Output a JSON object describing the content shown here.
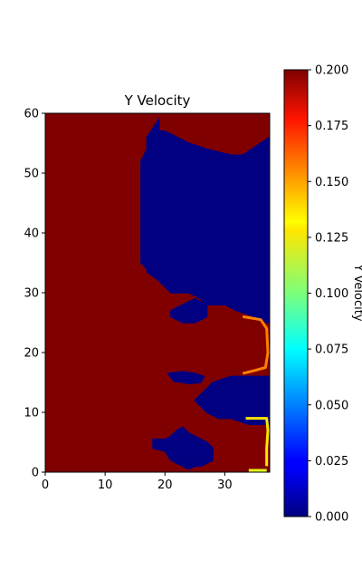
{
  "chart_data": {
    "type": "heatmap",
    "title": "Y Velocity",
    "xlabel": "",
    "ylabel": "",
    "xlim": [
      0,
      37.5
    ],
    "ylim": [
      0,
      60
    ],
    "x_ticks": [
      "0",
      "10",
      "20",
      "30"
    ],
    "y_ticks": [
      "0",
      "10",
      "20",
      "30",
      "40",
      "50",
      "60"
    ],
    "colormap": "jet",
    "colorbar": {
      "label": "Y Velocity",
      "range": [
        0.0,
        0.2
      ],
      "ticks": [
        "0.000",
        "0.025",
        "0.050",
        "0.075",
        "0.100",
        "0.125",
        "0.150",
        "0.175",
        "0.200"
      ]
    },
    "regions": [
      {
        "name": "low",
        "value": 0.0,
        "polygon": [
          [
            37.5,
            56
          ],
          [
            33,
            53
          ],
          [
            31,
            53
          ],
          [
            27,
            54
          ],
          [
            24,
            55
          ],
          [
            22,
            56
          ],
          [
            20,
            57
          ],
          [
            19,
            57
          ],
          [
            19,
            59
          ],
          [
            18,
            57.5
          ],
          [
            17,
            56
          ],
          [
            17,
            54
          ],
          [
            16,
            52
          ],
          [
            16,
            35
          ],
          [
            17,
            34
          ],
          [
            17,
            33.5
          ],
          [
            19,
            32
          ],
          [
            21,
            30
          ],
          [
            24,
            30
          ],
          [
            26,
            29
          ],
          [
            27,
            28
          ],
          [
            30,
            28
          ],
          [
            32,
            27
          ],
          [
            35,
            26
          ],
          [
            37,
            25
          ],
          [
            37.5,
            25
          ]
        ]
      },
      {
        "name": "low",
        "value": 0.0,
        "polygon": [
          [
            37.5,
            16
          ],
          [
            34,
            16
          ],
          [
            31,
            16
          ],
          [
            28,
            15
          ],
          [
            27,
            14
          ],
          [
            26,
            13
          ],
          [
            25,
            12
          ],
          [
            26,
            11
          ],
          [
            27,
            10
          ],
          [
            29,
            9
          ],
          [
            31,
            9
          ],
          [
            34,
            8
          ],
          [
            37.5,
            8
          ]
        ]
      },
      {
        "name": "low",
        "value": 0.0,
        "polygon": [
          [
            18,
            5.5
          ],
          [
            20,
            5.5
          ],
          [
            21,
            6
          ],
          [
            22,
            7
          ],
          [
            23,
            7.5
          ],
          [
            24,
            6.5
          ],
          [
            25,
            6
          ],
          [
            27,
            5
          ],
          [
            28,
            4
          ],
          [
            28,
            2
          ],
          [
            26,
            1
          ],
          [
            25,
            1
          ],
          [
            24,
            0.5
          ],
          [
            23,
            1
          ],
          [
            21,
            2
          ],
          [
            20,
            3.5
          ],
          [
            18,
            4
          ]
        ]
      },
      {
        "name": "low",
        "value": 0.0,
        "polygon": [
          [
            20.5,
            16.5
          ],
          [
            21.5,
            15.2
          ],
          [
            23,
            15
          ],
          [
            24,
            14.8
          ],
          [
            26,
            15
          ],
          [
            26.5,
            16
          ],
          [
            25,
            16.5
          ],
          [
            23,
            16.8
          ]
        ]
      },
      {
        "name": "low",
        "value": 0.0,
        "polygon": [
          [
            21,
            26
          ],
          [
            23,
            25
          ],
          [
            25,
            25
          ],
          [
            27,
            26
          ],
          [
            27,
            28
          ],
          [
            25,
            29
          ],
          [
            23,
            28
          ],
          [
            21,
            27
          ]
        ]
      }
    ],
    "highlights": [
      {
        "name": "edge-band-upper",
        "value": 0.15,
        "points": [
          [
            33,
            26
          ],
          [
            36,
            25.5
          ],
          [
            37,
            24
          ],
          [
            37.2,
            20
          ],
          [
            36.8,
            17.5
          ],
          [
            35,
            17
          ],
          [
            33,
            16.5
          ]
        ]
      },
      {
        "name": "edge-band-mid",
        "value": 0.13,
        "points": [
          [
            33.5,
            9
          ],
          [
            37,
            9
          ],
          [
            37.2,
            7
          ],
          [
            37,
            4
          ],
          [
            37,
            1
          ]
        ]
      },
      {
        "name": "edge-band-low",
        "value": 0.12,
        "points": [
          [
            34,
            0.3
          ],
          [
            37,
            0.3
          ]
        ]
      }
    ],
    "background_value": 0.2
  }
}
